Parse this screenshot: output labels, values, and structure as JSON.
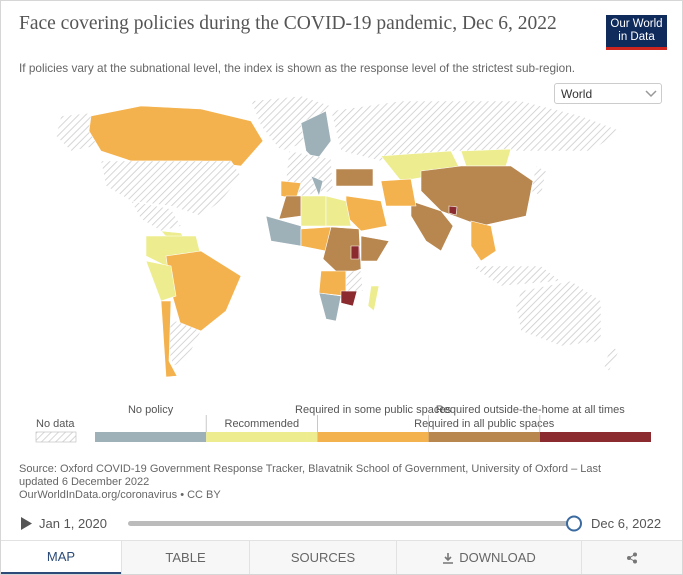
{
  "header": {
    "title": "Face covering policies during the COVID-19 pandemic, Dec 6, 2022",
    "subtitle": "If policies vary at the subnational level, the index is shown as the response level of the strictest sub-region.",
    "logo": [
      "Our World",
      "in Data"
    ]
  },
  "selector": "World",
  "legend": {
    "no_data": "No data",
    "items": [
      {
        "label": "No policy",
        "color": "#9eb0b8"
      },
      {
        "label": "Recommended",
        "color": "#eded8f"
      },
      {
        "label": "Required in some public spaces",
        "color": "#f4b24e"
      },
      {
        "label": "Required in all public spaces",
        "color": "#b8864f"
      },
      {
        "label": "Required outside-the-home at all times",
        "color": "#8b2a2f"
      }
    ]
  },
  "source": {
    "text": "Source: Oxford COVID-19 Government Response Tracker, Blavatnik School of Government, University of Oxford – Last updated 6 December 2022",
    "link": "OurWorldInData.org/coronavirus • CC BY"
  },
  "timeline": {
    "start": "Jan 1, 2020",
    "end": "Dec 6, 2022"
  },
  "tabs": [
    "MAP",
    "TABLE",
    "SOURCES",
    "DOWNLOAD"
  ]
}
